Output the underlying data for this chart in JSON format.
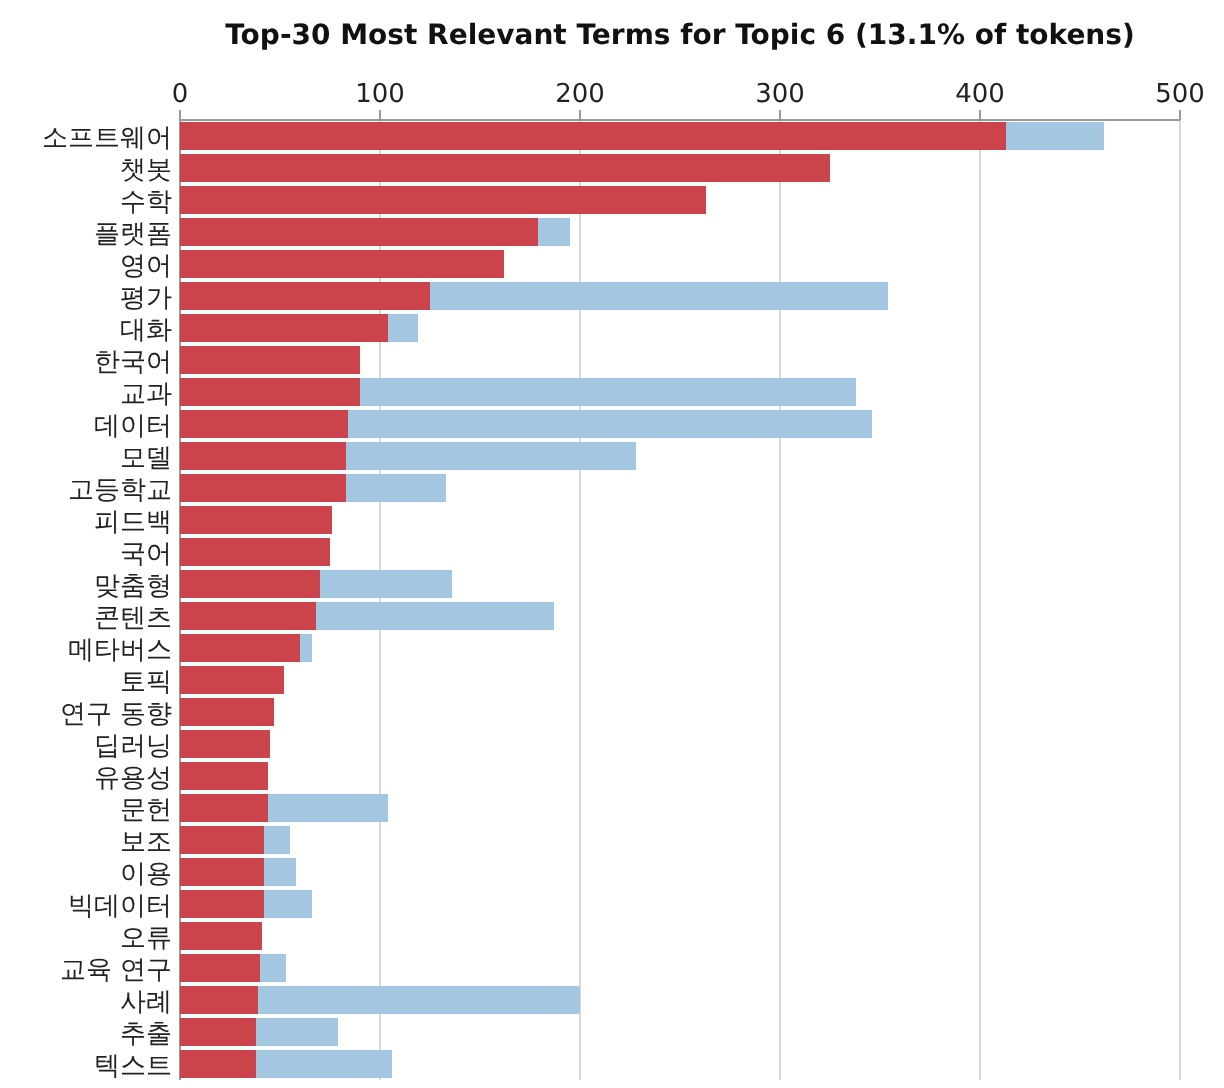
{
  "chart_data": {
    "type": "bar",
    "orientation": "horizontal",
    "stacked": true,
    "title": "Top-30 Most Relevant Terms for Topic 6 (13.1% of tokens)",
    "categories": [
      "소프트웨어",
      "챗봇",
      "수학",
      "플랫폼",
      "영어",
      "평가",
      "대화",
      "한국어",
      "교과",
      "데이터",
      "모델",
      "고등학교",
      "피드백",
      "국어",
      "맞춤형",
      "콘텐츠",
      "메타버스",
      "토픽",
      "연구 동향",
      "딥러닝",
      "유용성",
      "문헌",
      "보조",
      "이용",
      "빅데이터",
      "오류",
      "교육 연구",
      "사례",
      "추출",
      "텍스트"
    ],
    "series": [
      {
        "color": "#cc444b",
        "values": [
          413,
          325,
          263,
          179,
          162,
          125,
          104,
          90,
          90,
          84,
          83,
          83,
          76,
          75,
          70,
          68,
          60,
          52,
          47,
          45,
          44,
          44,
          42,
          42,
          42,
          41,
          40,
          39,
          38,
          38
        ]
      },
      {
        "color": "#a3c7e0",
        "values": [
          49,
          null,
          null,
          16,
          null,
          229,
          15,
          null,
          248,
          262,
          145,
          50,
          null,
          null,
          66,
          119,
          6,
          null,
          null,
          null,
          null,
          60,
          13,
          16,
          24,
          null,
          13,
          161,
          41,
          68
        ]
      }
    ],
    "xlim": [
      0,
      500
    ],
    "xticks": [
      0,
      100,
      200,
      300,
      400,
      500
    ],
    "grid": "x"
  }
}
